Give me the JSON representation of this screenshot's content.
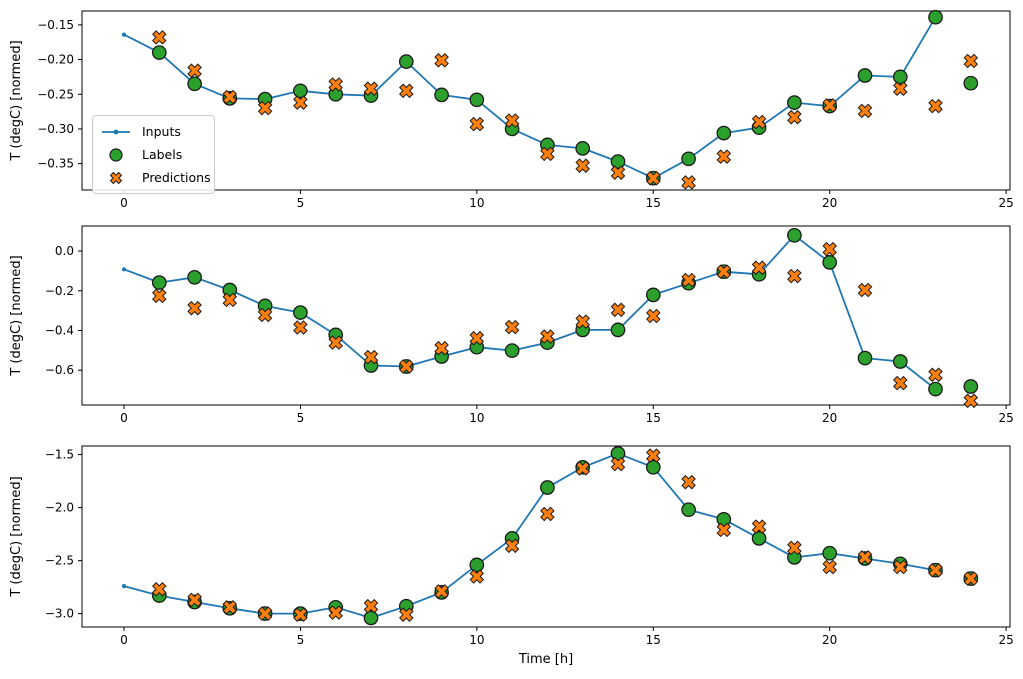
{
  "colors": {
    "inputs": "#1f77b4",
    "labels": "#2ca02c",
    "predictions": "#ff7f0e",
    "marker_edge": "#1a1a1a",
    "axis": "#000000"
  },
  "legend": {
    "items": [
      {
        "label": "Inputs",
        "series": "inputs"
      },
      {
        "label": "Labels",
        "series": "labels"
      },
      {
        "label": "Predictions",
        "series": "predictions"
      }
    ]
  },
  "chart_data": [
    {
      "type": "line",
      "title": "",
      "xlabel": "",
      "ylabel": "T (degC) [normed]",
      "xlim": [
        -1.19,
        25.11
      ],
      "ylim": [
        -0.388,
        -0.13
      ],
      "xticks": [
        0,
        5,
        10,
        15,
        20,
        25
      ],
      "xtick_labels": [
        "0",
        "5",
        "10",
        "15",
        "20",
        "25"
      ],
      "yticks": [
        -0.15,
        -0.2,
        -0.25,
        -0.3,
        -0.35
      ],
      "ytick_labels": [
        "−0.15",
        "−0.20",
        "−0.25",
        "−0.30",
        "−0.35"
      ],
      "grid": false,
      "legend_position": "upper-left-inside",
      "series": [
        {
          "name": "Inputs",
          "style": "line-dot",
          "x": [
            0,
            1,
            2,
            3,
            4,
            5,
            6,
            7,
            8,
            9,
            10,
            11,
            12,
            13,
            14,
            15,
            16,
            17,
            18,
            19,
            20,
            21,
            22,
            23
          ],
          "y": [
            -0.164,
            -0.19,
            -0.235,
            -0.256,
            -0.257,
            -0.245,
            -0.25,
            -0.252,
            -0.203,
            -0.251,
            -0.258,
            -0.3,
            -0.323,
            -0.328,
            -0.347,
            -0.371,
            -0.343,
            -0.306,
            -0.298,
            -0.262,
            -0.267,
            -0.223,
            -0.225,
            -0.139
          ]
        },
        {
          "name": "Labels",
          "style": "circle",
          "x": [
            1,
            2,
            3,
            4,
            5,
            6,
            7,
            8,
            9,
            10,
            11,
            12,
            13,
            14,
            15,
            16,
            17,
            18,
            19,
            20,
            21,
            22,
            23,
            24
          ],
          "y": [
            -0.19,
            -0.235,
            -0.256,
            -0.257,
            -0.245,
            -0.25,
            -0.252,
            -0.203,
            -0.251,
            -0.258,
            -0.3,
            -0.323,
            -0.328,
            -0.347,
            -0.371,
            -0.343,
            -0.306,
            -0.298,
            -0.262,
            -0.267,
            -0.223,
            -0.225,
            -0.139,
            -0.234
          ]
        },
        {
          "name": "Predictions",
          "style": "x-marker",
          "x": [
            1,
            2,
            3,
            4,
            5,
            6,
            7,
            8,
            9,
            10,
            11,
            12,
            13,
            14,
            15,
            16,
            17,
            18,
            19,
            20,
            21,
            22,
            23,
            24
          ],
          "y": [
            -0.168,
            -0.216,
            -0.254,
            -0.27,
            -0.262,
            -0.236,
            -0.242,
            -0.245,
            -0.201,
            -0.293,
            -0.288,
            -0.336,
            -0.353,
            -0.363,
            -0.371,
            -0.377,
            -0.34,
            -0.29,
            -0.283,
            -0.266,
            -0.274,
            -0.242,
            -0.267,
            -0.202
          ]
        }
      ]
    },
    {
      "type": "line",
      "title": "",
      "xlabel": "",
      "ylabel": "T (degC) [normed]",
      "xlim": [
        -1.19,
        25.11
      ],
      "ylim": [
        -0.775,
        0.126
      ],
      "xticks": [
        0,
        5,
        10,
        15,
        20,
        25
      ],
      "xtick_labels": [
        "0",
        "5",
        "10",
        "15",
        "20",
        "25"
      ],
      "yticks": [
        0.0,
        -0.2,
        -0.4,
        -0.6
      ],
      "ytick_labels": [
        "0.0",
        "−0.2",
        "−0.4",
        "−0.6"
      ],
      "grid": false,
      "legend_position": "none",
      "series": [
        {
          "name": "Inputs",
          "style": "line-dot",
          "x": [
            0,
            1,
            2,
            3,
            4,
            5,
            6,
            7,
            8,
            9,
            10,
            11,
            12,
            13,
            14,
            15,
            16,
            17,
            18,
            19,
            20,
            21,
            22,
            23
          ],
          "y": [
            -0.092,
            -0.159,
            -0.132,
            -0.196,
            -0.276,
            -0.31,
            -0.422,
            -0.576,
            -0.581,
            -0.531,
            -0.484,
            -0.501,
            -0.461,
            -0.397,
            -0.397,
            -0.221,
            -0.162,
            -0.104,
            -0.117,
            0.079,
            -0.057,
            -0.539,
            -0.556,
            -0.695
          ]
        },
        {
          "name": "Labels",
          "style": "circle",
          "x": [
            1,
            2,
            3,
            4,
            5,
            6,
            7,
            8,
            9,
            10,
            11,
            12,
            13,
            14,
            15,
            16,
            17,
            18,
            19,
            20,
            21,
            22,
            23,
            24
          ],
          "y": [
            -0.159,
            -0.132,
            -0.196,
            -0.276,
            -0.31,
            -0.422,
            -0.576,
            -0.581,
            -0.531,
            -0.484,
            -0.501,
            -0.461,
            -0.397,
            -0.397,
            -0.221,
            -0.162,
            -0.104,
            -0.117,
            0.079,
            -0.057,
            -0.539,
            -0.556,
            -0.695,
            -0.682
          ]
        },
        {
          "name": "Predictions",
          "style": "x-marker",
          "x": [
            1,
            2,
            3,
            4,
            5,
            6,
            7,
            8,
            9,
            10,
            11,
            12,
            13,
            14,
            15,
            16,
            17,
            18,
            19,
            20,
            21,
            22,
            23,
            24
          ],
          "y": [
            -0.226,
            -0.288,
            -0.246,
            -0.322,
            -0.385,
            -0.461,
            -0.534,
            -0.581,
            -0.489,
            -0.439,
            -0.383,
            -0.43,
            -0.355,
            -0.296,
            -0.327,
            -0.146,
            -0.104,
            -0.084,
            -0.126,
            0.009,
            -0.196,
            -0.665,
            -0.623,
            -0.754
          ]
        }
      ]
    },
    {
      "type": "line",
      "title": "",
      "xlabel": "Time [h]",
      "ylabel": "T (degC) [normed]",
      "xlim": [
        -1.19,
        25.11
      ],
      "ylim": [
        -3.126,
        -1.419
      ],
      "xticks": [
        0,
        5,
        10,
        15,
        20,
        25
      ],
      "xtick_labels": [
        "0",
        "5",
        "10",
        "15",
        "20",
        "25"
      ],
      "yticks": [
        -1.5,
        -2.0,
        -2.5,
        -3.0
      ],
      "ytick_labels": [
        "−1.5",
        "−2.0",
        "−2.5",
        "−3.0"
      ],
      "grid": false,
      "legend_position": "none",
      "series": [
        {
          "name": "Inputs",
          "style": "line-dot",
          "x": [
            0,
            1,
            2,
            3,
            4,
            5,
            6,
            7,
            8,
            9,
            10,
            11,
            12,
            13,
            14,
            15,
            16,
            17,
            18,
            19,
            20,
            21,
            22,
            23
          ],
          "y": [
            -2.74,
            -2.83,
            -2.89,
            -2.95,
            -3.0,
            -3.0,
            -2.94,
            -3.04,
            -2.93,
            -2.8,
            -2.54,
            -2.29,
            -1.81,
            -1.62,
            -1.49,
            -1.62,
            -2.02,
            -2.11,
            -2.29,
            -2.47,
            -2.43,
            -2.48,
            -2.53,
            -2.59
          ]
        },
        {
          "name": "Labels",
          "style": "circle",
          "x": [
            1,
            2,
            3,
            4,
            5,
            6,
            7,
            8,
            9,
            10,
            11,
            12,
            13,
            14,
            15,
            16,
            17,
            18,
            19,
            20,
            21,
            22,
            23,
            24
          ],
          "y": [
            -2.83,
            -2.89,
            -2.95,
            -3.0,
            -3.0,
            -2.94,
            -3.04,
            -2.93,
            -2.8,
            -2.54,
            -2.29,
            -1.81,
            -1.62,
            -1.49,
            -1.62,
            -2.02,
            -2.11,
            -2.29,
            -2.47,
            -2.43,
            -2.48,
            -2.53,
            -2.59,
            -2.67
          ]
        },
        {
          "name": "Predictions",
          "style": "x-marker",
          "x": [
            1,
            2,
            3,
            4,
            5,
            6,
            7,
            8,
            9,
            10,
            11,
            12,
            13,
            14,
            15,
            16,
            17,
            18,
            19,
            20,
            21,
            22,
            23,
            24
          ],
          "y": [
            -2.77,
            -2.87,
            -2.94,
            -3.0,
            -3.01,
            -2.99,
            -2.93,
            -3.01,
            -2.79,
            -2.65,
            -2.36,
            -2.06,
            -1.63,
            -1.59,
            -1.51,
            -1.76,
            -2.21,
            -2.18,
            -2.38,
            -2.56,
            -2.47,
            -2.56,
            -2.59,
            -2.67
          ]
        }
      ]
    }
  ]
}
